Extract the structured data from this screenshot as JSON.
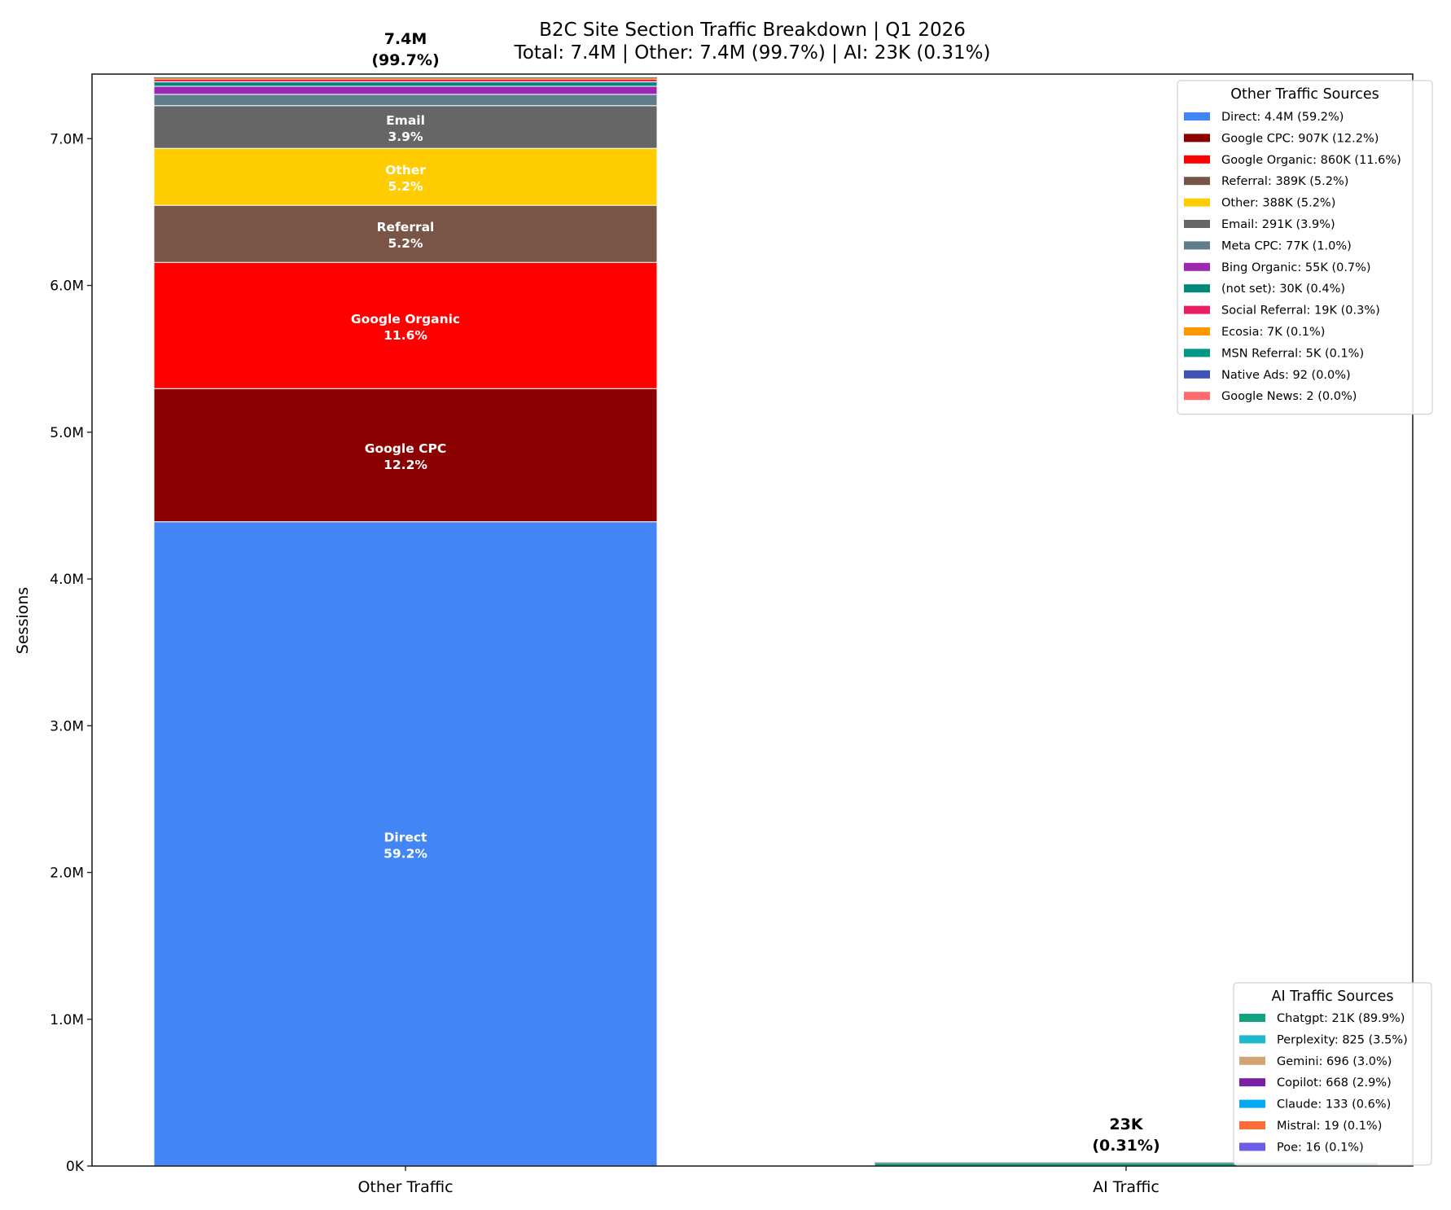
{
  "chart_data": {
    "type": "bar",
    "stacked": true,
    "title": "B2C Site Section Traffic Breakdown | Q1 2026",
    "subtitle": "Total: 7.4M | Other: 7.4M (99.7%) | AI: 23K (0.31%)",
    "xlabel": "",
    "ylabel": "Sessions",
    "ylim": [
      0,
      7440000
    ],
    "yticks": [
      0,
      1000000,
      2000000,
      3000000,
      4000000,
      5000000,
      6000000,
      7000000
    ],
    "ytick_labels": [
      "0K",
      "1.0M",
      "2.0M",
      "3.0M",
      "4.0M",
      "5.0M",
      "6.0M",
      "7.0M"
    ],
    "grid": false,
    "categories": [
      "Other Traffic",
      "AI Traffic"
    ],
    "bar_totals": [
      {
        "value": "7.4M",
        "share": "(99.7%)"
      },
      {
        "value": "23K",
        "share": "(0.31%)"
      }
    ],
    "stacks": [
      {
        "category": "Other Traffic",
        "legend_title": "Other Traffic Sources",
        "legend_position": "upper-right",
        "series": [
          {
            "name": "Direct",
            "value": 4390000,
            "color": "#4285F4",
            "legend": "Direct: 4.4M (59.2%)",
            "label": "Direct",
            "pct": "59.2%"
          },
          {
            "name": "Google CPC",
            "value": 907000,
            "color": "#8B0000",
            "legend": "Google CPC: 907K (12.2%)",
            "label": "Google CPC",
            "pct": "12.2%"
          },
          {
            "name": "Google Organic",
            "value": 860000,
            "color": "#FF0000",
            "legend": "Google Organic: 860K (11.6%)",
            "label": "Google Organic",
            "pct": "11.6%"
          },
          {
            "name": "Referral",
            "value": 389000,
            "color": "#795548",
            "legend": "Referral: 389K (5.2%)",
            "label": "Referral",
            "pct": "5.2%"
          },
          {
            "name": "Other",
            "value": 388000,
            "color": "#FFCC00",
            "legend": "Other: 388K (5.2%)",
            "label": "Other",
            "pct": "5.2%"
          },
          {
            "name": "Email",
            "value": 291000,
            "color": "#666666",
            "legend": "Email: 291K (3.9%)",
            "label": "Email",
            "pct": "3.9%"
          },
          {
            "name": "Meta CPC",
            "value": 77000,
            "color": "#607D8B",
            "legend": "Meta CPC: 77K (1.0%)"
          },
          {
            "name": "Bing Organic",
            "value": 55000,
            "color": "#9C27B0",
            "legend": "Bing Organic: 55K (0.7%)"
          },
          {
            "name": "(not set)",
            "value": 30000,
            "color": "#00897B",
            "legend": "(not set): 30K (0.4%)"
          },
          {
            "name": "Social Referral",
            "value": 19000,
            "color": "#E91E63",
            "legend": "Social Referral: 19K (0.3%)"
          },
          {
            "name": "Ecosia",
            "value": 7000,
            "color": "#FF9800",
            "legend": "Ecosia: 7K (0.1%)"
          },
          {
            "name": "MSN Referral",
            "value": 5000,
            "color": "#009688",
            "legend": "MSN Referral: 5K (0.1%)"
          },
          {
            "name": "Native Ads",
            "value": 92,
            "color": "#3F51B5",
            "legend": "Native Ads: 92 (0.0%)"
          },
          {
            "name": "Google News",
            "value": 2,
            "color": "#FF6B6B",
            "legend": "Google News: 2 (0.0%)"
          }
        ]
      },
      {
        "category": "AI Traffic",
        "legend_title": "AI Traffic Sources",
        "legend_position": "lower-right",
        "series": [
          {
            "name": "Chatgpt",
            "value": 21000,
            "color": "#10A37F",
            "legend": "Chatgpt: 21K (89.9%)"
          },
          {
            "name": "Perplexity",
            "value": 825,
            "color": "#20B8CD",
            "legend": "Perplexity: 825 (3.5%)"
          },
          {
            "name": "Gemini",
            "value": 696,
            "color": "#D4A373",
            "legend": "Gemini: 696 (3.0%)"
          },
          {
            "name": "Copilot",
            "value": 668,
            "color": "#7B1FA2",
            "legend": "Copilot: 668 (2.9%)"
          },
          {
            "name": "Claude",
            "value": 133,
            "color": "#03A9F4",
            "legend": "Claude: 133 (0.6%)"
          },
          {
            "name": "Mistral",
            "value": 19,
            "color": "#FF6B35",
            "legend": "Mistral: 19 (0.1%)"
          },
          {
            "name": "Poe",
            "value": 16,
            "color": "#6C5CE7",
            "legend": "Poe: 16 (0.1%)"
          }
        ]
      }
    ]
  }
}
